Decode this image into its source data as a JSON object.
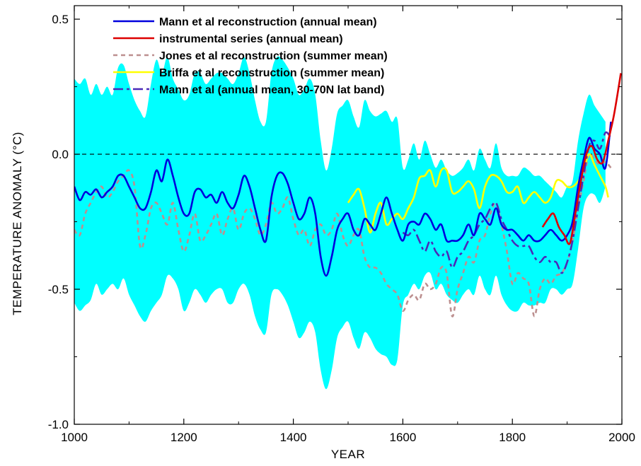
{
  "chart_data": {
    "type": "line",
    "xlabel": "YEAR",
    "ylabel": "TEMPERATURE ANOMALY (°C)",
    "xlim": [
      1000,
      2000
    ],
    "ylim": [
      -1.0,
      0.55
    ],
    "x_ticks": [
      1000,
      1200,
      1400,
      1600,
      1800,
      2000
    ],
    "x_tick_labels": [
      "1000",
      "1200",
      "1400",
      "1600",
      "1800",
      "2000"
    ],
    "y_ticks": [
      0.5,
      0.0,
      -0.5,
      -1.0
    ],
    "y_tick_labels": [
      "0.5",
      "0.0",
      "-0.5",
      "-1.0"
    ],
    "zero_line": true,
    "grid": false,
    "legend_position": "top-center",
    "uncertainty_band": {
      "color": "#00ffff",
      "x": [
        1000,
        1010,
        1020,
        1030,
        1040,
        1050,
        1060,
        1070,
        1080,
        1090,
        1100,
        1110,
        1120,
        1130,
        1140,
        1150,
        1160,
        1170,
        1180,
        1190,
        1200,
        1210,
        1220,
        1230,
        1240,
        1250,
        1260,
        1270,
        1280,
        1290,
        1300,
        1310,
        1320,
        1330,
        1340,
        1350,
        1360,
        1370,
        1380,
        1390,
        1400,
        1410,
        1420,
        1430,
        1440,
        1450,
        1460,
        1470,
        1480,
        1490,
        1500,
        1510,
        1520,
        1530,
        1540,
        1550,
        1560,
        1570,
        1580,
        1590,
        1600,
        1610,
        1620,
        1630,
        1640,
        1650,
        1660,
        1670,
        1680,
        1690,
        1700,
        1710,
        1720,
        1730,
        1740,
        1750,
        1760,
        1770,
        1780,
        1790,
        1800,
        1810,
        1820,
        1830,
        1840,
        1850,
        1860,
        1870,
        1880,
        1890,
        1900,
        1910,
        1920,
        1930,
        1940,
        1950,
        1960,
        1970
      ],
      "upper": [
        0.28,
        0.26,
        0.28,
        0.22,
        0.26,
        0.22,
        0.25,
        0.22,
        0.32,
        0.33,
        0.26,
        0.2,
        0.16,
        0.14,
        0.26,
        0.35,
        0.3,
        0.36,
        0.28,
        0.24,
        0.2,
        0.22,
        0.3,
        0.3,
        0.26,
        0.28,
        0.3,
        0.3,
        0.28,
        0.26,
        0.3,
        0.36,
        0.3,
        0.2,
        0.12,
        0.12,
        0.3,
        0.36,
        0.35,
        0.32,
        0.28,
        0.22,
        0.24,
        0.28,
        0.22,
        0.05,
        -0.06,
        0.02,
        0.15,
        0.18,
        0.2,
        0.14,
        0.1,
        0.2,
        0.16,
        0.14,
        0.15,
        0.16,
        0.12,
        0.13,
        -0.05,
        -0.02,
        0.04,
        -0.02,
        0.05,
        0.0,
        -0.05,
        -0.02,
        -0.06,
        -0.08,
        -0.07,
        -0.05,
        -0.02,
        -0.06,
        0.02,
        -0.02,
        -0.05,
        0.04,
        -0.05,
        -0.08,
        -0.08,
        -0.08,
        -0.05,
        -0.06,
        -0.08,
        -0.08,
        -0.1,
        -0.12,
        -0.14,
        -0.16,
        -0.12,
        -0.1,
        0.05,
        0.15,
        0.22,
        0.18,
        0.15,
        0.12
      ],
      "lower": [
        -0.55,
        -0.58,
        -0.56,
        -0.54,
        -0.48,
        -0.52,
        -0.5,
        -0.48,
        -0.5,
        -0.46,
        -0.52,
        -0.56,
        -0.6,
        -0.62,
        -0.58,
        -0.55,
        -0.52,
        -0.45,
        -0.46,
        -0.5,
        -0.58,
        -0.55,
        -0.5,
        -0.52,
        -0.55,
        -0.52,
        -0.5,
        -0.5,
        -0.55,
        -0.55,
        -0.5,
        -0.48,
        -0.52,
        -0.6,
        -0.65,
        -0.66,
        -0.52,
        -0.5,
        -0.52,
        -0.56,
        -0.62,
        -0.68,
        -0.66,
        -0.62,
        -0.66,
        -0.8,
        -0.87,
        -0.8,
        -0.68,
        -0.64,
        -0.62,
        -0.68,
        -0.72,
        -0.66,
        -0.68,
        -0.72,
        -0.74,
        -0.75,
        -0.78,
        -0.76,
        -0.56,
        -0.52,
        -0.48,
        -0.5,
        -0.45,
        -0.44,
        -0.5,
        -0.48,
        -0.52,
        -0.54,
        -0.55,
        -0.52,
        -0.5,
        -0.52,
        -0.45,
        -0.5,
        -0.52,
        -0.45,
        -0.52,
        -0.56,
        -0.58,
        -0.58,
        -0.55,
        -0.56,
        -0.56,
        -0.55,
        -0.55,
        -0.5,
        -0.5,
        -0.52,
        -0.5,
        -0.48,
        -0.35,
        -0.2,
        -0.15,
        -0.15,
        -0.18,
        -0.12
      ]
    },
    "series": [
      {
        "name": "Mann et al reconstruction (annual mean)",
        "color": "#0000dd",
        "dash": "solid",
        "x": [
          1000,
          1010,
          1020,
          1030,
          1040,
          1050,
          1060,
          1070,
          1080,
          1090,
          1100,
          1110,
          1120,
          1130,
          1140,
          1150,
          1160,
          1170,
          1180,
          1190,
          1200,
          1210,
          1220,
          1230,
          1240,
          1250,
          1260,
          1270,
          1280,
          1290,
          1300,
          1310,
          1320,
          1330,
          1340,
          1350,
          1360,
          1370,
          1380,
          1390,
          1400,
          1410,
          1420,
          1430,
          1440,
          1450,
          1460,
          1470,
          1480,
          1490,
          1500,
          1510,
          1520,
          1530,
          1540,
          1550,
          1560,
          1570,
          1580,
          1590,
          1600,
          1610,
          1620,
          1630,
          1640,
          1650,
          1660,
          1670,
          1680,
          1690,
          1700,
          1710,
          1720,
          1730,
          1740,
          1750,
          1760,
          1770,
          1780,
          1790,
          1800,
          1810,
          1820,
          1830,
          1840,
          1850,
          1860,
          1870,
          1880,
          1890,
          1900,
          1910,
          1920,
          1930,
          1940,
          1950,
          1960,
          1970,
          1980
        ],
        "y": [
          -0.12,
          -0.17,
          -0.14,
          -0.15,
          -0.13,
          -0.16,
          -0.14,
          -0.12,
          -0.08,
          -0.08,
          -0.12,
          -0.16,
          -0.2,
          -0.2,
          -0.14,
          -0.06,
          -0.1,
          -0.02,
          -0.08,
          -0.16,
          -0.22,
          -0.22,
          -0.14,
          -0.13,
          -0.16,
          -0.15,
          -0.18,
          -0.14,
          -0.18,
          -0.2,
          -0.15,
          -0.08,
          -0.12,
          -0.2,
          -0.28,
          -0.32,
          -0.16,
          -0.08,
          -0.07,
          -0.11,
          -0.18,
          -0.24,
          -0.22,
          -0.16,
          -0.22,
          -0.38,
          -0.45,
          -0.38,
          -0.28,
          -0.24,
          -0.22,
          -0.28,
          -0.3,
          -0.24,
          -0.26,
          -0.28,
          -0.22,
          -0.16,
          -0.22,
          -0.28,
          -0.32,
          -0.26,
          -0.25,
          -0.26,
          -0.22,
          -0.24,
          -0.28,
          -0.26,
          -0.32,
          -0.32,
          -0.32,
          -0.3,
          -0.26,
          -0.3,
          -0.22,
          -0.24,
          -0.26,
          -0.2,
          -0.26,
          -0.28,
          -0.28,
          -0.3,
          -0.32,
          -0.3,
          -0.32,
          -0.32,
          -0.3,
          -0.28,
          -0.3,
          -0.32,
          -0.3,
          -0.25,
          -0.12,
          -0.02,
          0.06,
          0.02,
          0.0,
          -0.05,
          0.12
        ]
      },
      {
        "name": "instrumental series (annual mean)",
        "color": "#dd0000",
        "dash": "solid",
        "x": [
          1855,
          1865,
          1875,
          1885,
          1895,
          1905,
          1915,
          1925,
          1935,
          1945,
          1955,
          1965,
          1975,
          1985,
          1995,
          1998
        ],
        "y": [
          -0.27,
          -0.24,
          -0.22,
          -0.27,
          -0.3,
          -0.33,
          -0.22,
          -0.1,
          0.0,
          0.03,
          -0.02,
          -0.03,
          0.05,
          0.14,
          0.26,
          0.3
        ]
      },
      {
        "name": "Jones et al reconstruction (summer mean)",
        "color": "#bc8f8f",
        "dash": "6,5",
        "x": [
          1000,
          1010,
          1020,
          1030,
          1040,
          1050,
          1060,
          1070,
          1080,
          1090,
          1100,
          1110,
          1120,
          1130,
          1140,
          1150,
          1160,
          1170,
          1180,
          1190,
          1200,
          1210,
          1220,
          1230,
          1240,
          1250,
          1260,
          1270,
          1280,
          1290,
          1300,
          1310,
          1320,
          1330,
          1340,
          1350,
          1360,
          1370,
          1380,
          1390,
          1400,
          1410,
          1420,
          1430,
          1440,
          1450,
          1460,
          1470,
          1480,
          1490,
          1500,
          1510,
          1520,
          1530,
          1540,
          1550,
          1560,
          1570,
          1580,
          1590,
          1600,
          1610,
          1620,
          1630,
          1640,
          1650,
          1660,
          1670,
          1680,
          1690,
          1700,
          1710,
          1720,
          1730,
          1740,
          1750,
          1760,
          1770,
          1780,
          1790,
          1800,
          1810,
          1820,
          1830,
          1840,
          1850,
          1860,
          1870,
          1880,
          1890,
          1900,
          1910,
          1920,
          1930,
          1940,
          1950,
          1960,
          1970,
          1980
        ],
        "y": [
          -0.28,
          -0.3,
          -0.22,
          -0.18,
          -0.14,
          -0.12,
          -0.16,
          -0.14,
          -0.1,
          -0.08,
          -0.06,
          -0.12,
          -0.34,
          -0.3,
          -0.2,
          -0.18,
          -0.22,
          -0.26,
          -0.18,
          -0.28,
          -0.36,
          -0.3,
          -0.22,
          -0.32,
          -0.3,
          -0.26,
          -0.22,
          -0.3,
          -0.24,
          -0.2,
          -0.28,
          -0.22,
          -0.2,
          -0.24,
          -0.3,
          -0.26,
          -0.18,
          -0.22,
          -0.2,
          -0.16,
          -0.24,
          -0.3,
          -0.28,
          -0.34,
          -0.28,
          -0.26,
          -0.3,
          -0.28,
          -0.22,
          -0.3,
          -0.34,
          -0.3,
          -0.28,
          -0.38,
          -0.42,
          -0.42,
          -0.44,
          -0.48,
          -0.5,
          -0.52,
          -0.58,
          -0.54,
          -0.52,
          -0.54,
          -0.48,
          -0.5,
          -0.48,
          -0.42,
          -0.44,
          -0.6,
          -0.5,
          -0.44,
          -0.38,
          -0.4,
          -0.32,
          -0.3,
          -0.22,
          -0.18,
          -0.26,
          -0.36,
          -0.48,
          -0.44,
          -0.46,
          -0.48,
          -0.6,
          -0.5,
          -0.46,
          -0.48,
          -0.45,
          -0.44,
          -0.4,
          -0.32,
          -0.2,
          -0.1,
          0.0,
          -0.02,
          -0.04,
          -0.03,
          -0.05
        ]
      },
      {
        "name": "Briffa et al reconstruction (summer mean)",
        "color": "#ffff00",
        "dash": "solid",
        "x": [
          1500,
          1510,
          1520,
          1530,
          1540,
          1550,
          1560,
          1570,
          1580,
          1590,
          1600,
          1610,
          1620,
          1630,
          1640,
          1650,
          1660,
          1670,
          1680,
          1690,
          1700,
          1710,
          1720,
          1730,
          1740,
          1750,
          1760,
          1770,
          1780,
          1790,
          1800,
          1810,
          1820,
          1830,
          1840,
          1850,
          1860,
          1870,
          1880,
          1890,
          1900,
          1910,
          1920,
          1930,
          1940,
          1950,
          1960,
          1970,
          1975
        ],
        "y": [
          -0.18,
          -0.15,
          -0.13,
          -0.2,
          -0.29,
          -0.22,
          -0.18,
          -0.26,
          -0.24,
          -0.22,
          -0.24,
          -0.2,
          -0.16,
          -0.09,
          -0.08,
          -0.06,
          -0.12,
          -0.06,
          -0.06,
          -0.14,
          -0.14,
          -0.12,
          -0.1,
          -0.13,
          -0.2,
          -0.12,
          -0.08,
          -0.08,
          -0.1,
          -0.14,
          -0.14,
          -0.12,
          -0.18,
          -0.16,
          -0.14,
          -0.16,
          -0.18,
          -0.16,
          -0.1,
          -0.1,
          -0.12,
          -0.12,
          -0.1,
          -0.06,
          0.0,
          -0.04,
          -0.08,
          -0.12,
          -0.16
        ]
      },
      {
        "name": "Mann et al (annual mean, 30-70N lat band)",
        "color": "#4b2ab8",
        "dash": "14,5,4,5",
        "x": [
          1600,
          1610,
          1620,
          1630,
          1640,
          1650,
          1660,
          1670,
          1680,
          1690,
          1700,
          1710,
          1720,
          1730,
          1740,
          1750,
          1760,
          1770,
          1780,
          1790,
          1800,
          1810,
          1820,
          1830,
          1840,
          1850,
          1860,
          1870,
          1880,
          1890,
          1900,
          1910,
          1920,
          1930,
          1940,
          1950,
          1960,
          1970,
          1980
        ],
        "y": [
          -0.29,
          -0.3,
          -0.28,
          -0.32,
          -0.36,
          -0.32,
          -0.36,
          -0.38,
          -0.36,
          -0.42,
          -0.38,
          -0.36,
          -0.32,
          -0.3,
          -0.26,
          -0.24,
          -0.2,
          -0.18,
          -0.24,
          -0.28,
          -0.32,
          -0.34,
          -0.34,
          -0.34,
          -0.38,
          -0.4,
          -0.38,
          -0.4,
          -0.4,
          -0.44,
          -0.4,
          -0.32,
          -0.2,
          -0.08,
          0.03,
          0.05,
          0.02,
          0.08,
          0.06
        ]
      }
    ]
  }
}
